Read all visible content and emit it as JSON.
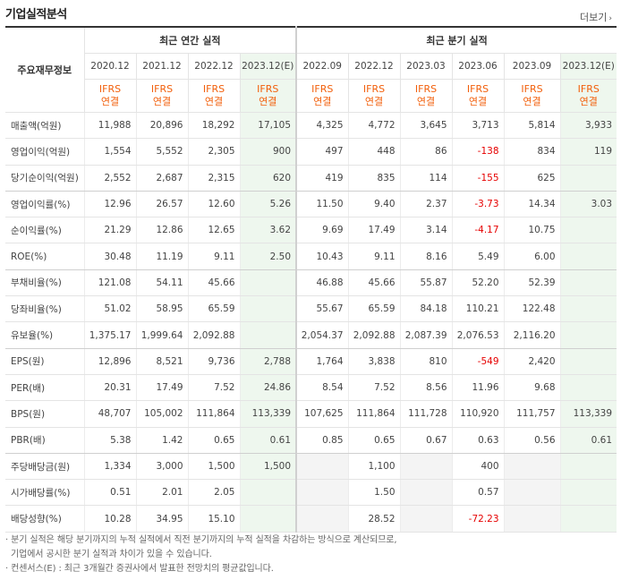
{
  "title": "기업실적분석",
  "more_label": "더보기",
  "header": {
    "row_label": "주요재무정보",
    "annual_group": "최근 연간 실적",
    "quarter_group": "최근 분기 실적",
    "annual_periods": [
      "2020.12",
      "2021.12",
      "2022.12",
      "2023.12(E)"
    ],
    "quarter_periods": [
      "2022.09",
      "2022.12",
      "2023.03",
      "2023.06",
      "2023.09",
      "2023.12(E)"
    ],
    "basis_top": "IFRS",
    "basis_bottom": "연결"
  },
  "rows": [
    {
      "label": "매출액(억원)",
      "annual": [
        "11,988",
        "20,896",
        "18,292",
        "17,105"
      ],
      "quarter": [
        "4,325",
        "4,772",
        "3,645",
        "3,713",
        "5,814",
        "3,933"
      ]
    },
    {
      "label": "영업이익(억원)",
      "annual": [
        "1,554",
        "5,552",
        "2,305",
        "900"
      ],
      "quarter": [
        "497",
        "448",
        "86",
        "-138",
        "834",
        "119"
      ]
    },
    {
      "label": "당기순이익(억원)",
      "annual": [
        "2,552",
        "2,687",
        "2,315",
        "620"
      ],
      "quarter": [
        "419",
        "835",
        "114",
        "-155",
        "625",
        ""
      ]
    },
    {
      "label": "영업이익률(%)",
      "annual": [
        "12.96",
        "26.57",
        "12.60",
        "5.26"
      ],
      "quarter": [
        "11.50",
        "9.40",
        "2.37",
        "-3.73",
        "14.34",
        "3.03"
      ]
    },
    {
      "label": "순이익률(%)",
      "annual": [
        "21.29",
        "12.86",
        "12.65",
        "3.62"
      ],
      "quarter": [
        "9.69",
        "17.49",
        "3.14",
        "-4.17",
        "10.75",
        ""
      ]
    },
    {
      "label": "ROE(%)",
      "annual": [
        "30.48",
        "11.19",
        "9.11",
        "2.50"
      ],
      "quarter": [
        "10.43",
        "9.11",
        "8.16",
        "5.49",
        "6.00",
        ""
      ]
    },
    {
      "label": "부채비율(%)",
      "annual": [
        "121.08",
        "54.11",
        "45.66",
        ""
      ],
      "quarter": [
        "46.88",
        "45.66",
        "55.87",
        "52.20",
        "52.39",
        ""
      ]
    },
    {
      "label": "당좌비율(%)",
      "annual": [
        "51.02",
        "58.95",
        "65.59",
        ""
      ],
      "quarter": [
        "55.67",
        "65.59",
        "84.18",
        "110.21",
        "122.48",
        ""
      ]
    },
    {
      "label": "유보율(%)",
      "annual": [
        "1,375.17",
        "1,999.64",
        "2,092.88",
        ""
      ],
      "quarter": [
        "2,054.37",
        "2,092.88",
        "2,087.39",
        "2,076.53",
        "2,116.20",
        ""
      ]
    },
    {
      "label": "EPS(원)",
      "annual": [
        "12,896",
        "8,521",
        "9,736",
        "2,788"
      ],
      "quarter": [
        "1,764",
        "3,838",
        "810",
        "-549",
        "2,420",
        ""
      ]
    },
    {
      "label": "PER(배)",
      "annual": [
        "20.31",
        "17.49",
        "7.52",
        "24.86"
      ],
      "quarter": [
        "8.54",
        "7.52",
        "8.56",
        "11.96",
        "9.68",
        ""
      ]
    },
    {
      "label": "BPS(원)",
      "annual": [
        "48,707",
        "105,002",
        "111,864",
        "113,339"
      ],
      "quarter": [
        "107,625",
        "111,864",
        "111,728",
        "110,920",
        "111,757",
        "113,339"
      ]
    },
    {
      "label": "PBR(배)",
      "annual": [
        "5.38",
        "1.42",
        "0.65",
        "0.61"
      ],
      "quarter": [
        "0.85",
        "0.65",
        "0.67",
        "0.63",
        "0.56",
        "0.61"
      ]
    },
    {
      "label": "주당배당금(원)",
      "annual": [
        "1,334",
        "3,000",
        "1,500",
        "1,500"
      ],
      "quarter": [
        "",
        "1,100",
        "",
        "400",
        "",
        ""
      ]
    },
    {
      "label": "시가배당률(%)",
      "annual": [
        "0.51",
        "2.01",
        "2.05",
        ""
      ],
      "quarter": [
        "",
        "1.50",
        "",
        "0.57",
        "",
        ""
      ]
    },
    {
      "label": "배당성향(%)",
      "annual": [
        "10.28",
        "34.95",
        "15.10",
        ""
      ],
      "quarter": [
        "",
        "28.52",
        "",
        "-72.23",
        "",
        ""
      ]
    }
  ],
  "notes": [
    "· 분기 실적은 해당 분기까지의 누적 실적에서 직전 분기까지의 누적 실적을 차감하는 방식으로 계산되므로,",
    "  기업에서 공시한 분기 실적과 차이가 있을 수 있습니다.",
    "· 컨센서스(E) : 최근 3개월간 증권사에서 발표한 전망치의 평균값입니다."
  ]
}
